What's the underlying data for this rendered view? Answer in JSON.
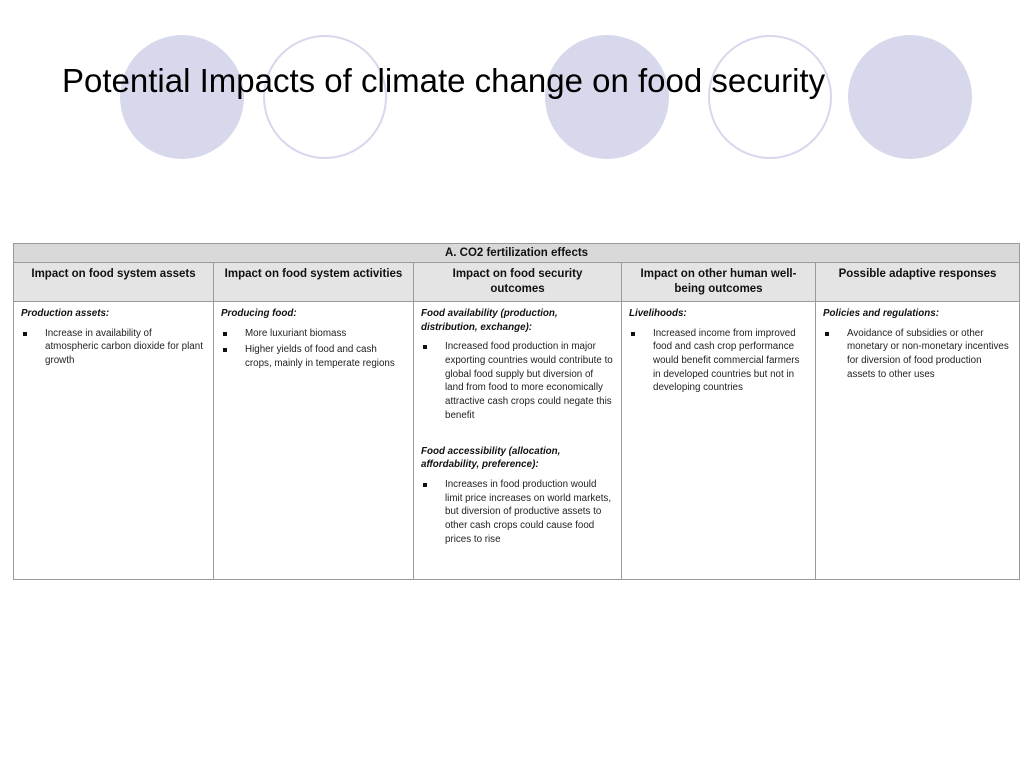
{
  "slide": {
    "title": "Potential Impacts of climate change on food security"
  },
  "colors": {
    "decoration": "#d7d8ec",
    "caption_background": "#d9d9d9",
    "header_background": "#e4e4e4",
    "border": "#9a9a9a"
  },
  "table": {
    "caption": "A. CO2 fertilization effects",
    "headers": [
      "Impact on food system assets",
      "Impact on food system activities",
      "Impact on food security outcomes",
      "Impact on other human well-being outcomes",
      "Possible adaptive responses"
    ],
    "columns": [
      {
        "sections": [
          {
            "title": "Production assets:",
            "bullets": [
              "Increase in availability of atmospheric carbon dioxide for plant growth"
            ]
          }
        ]
      },
      {
        "sections": [
          {
            "title": "Producing food:",
            "bullets": [
              "More luxuriant biomass",
              "Higher yields of food and cash crops, mainly in temperate regions"
            ]
          }
        ]
      },
      {
        "sections": [
          {
            "title": "Food availability (production, distribution, exchange):",
            "bullets": [
              "Increased food production in major exporting countries would contribute to global food supply but diversion of land from food to more economically attractive cash crops could negate this benefit"
            ]
          },
          {
            "title": "Food accessibility (allocation, affordability, preference):",
            "bullets": [
              "Increases in food production would limit price increases on world markets, but diversion of productive assets to other cash crops could cause food prices to rise"
            ]
          }
        ]
      },
      {
        "sections": [
          {
            "title": "Livelihoods:",
            "bullets": [
              "Increased income from improved food and cash crop performance would benefit commercial farmers in developed countries but not in developing countries"
            ]
          }
        ]
      },
      {
        "sections": [
          {
            "title": "Policies and regulations:",
            "bullets": [
              "Avoidance of subsidies or other monetary or non-monetary incentives for diversion of food production assets to other uses"
            ]
          }
        ]
      }
    ]
  }
}
